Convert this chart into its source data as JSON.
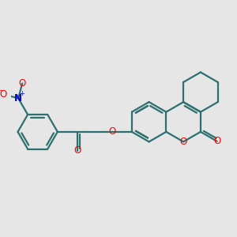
{
  "bg_color": "#e6e6e6",
  "bond_color": "#2d7070",
  "o_color": "#ff0000",
  "n_color": "#0000cc",
  "lw": 1.6,
  "fs": 8.5,
  "figsize": [
    3.0,
    3.0
  ],
  "dpi": 100,
  "xlim": [
    0.0,
    10.0
  ],
  "ylim": [
    0.0,
    10.0
  ]
}
